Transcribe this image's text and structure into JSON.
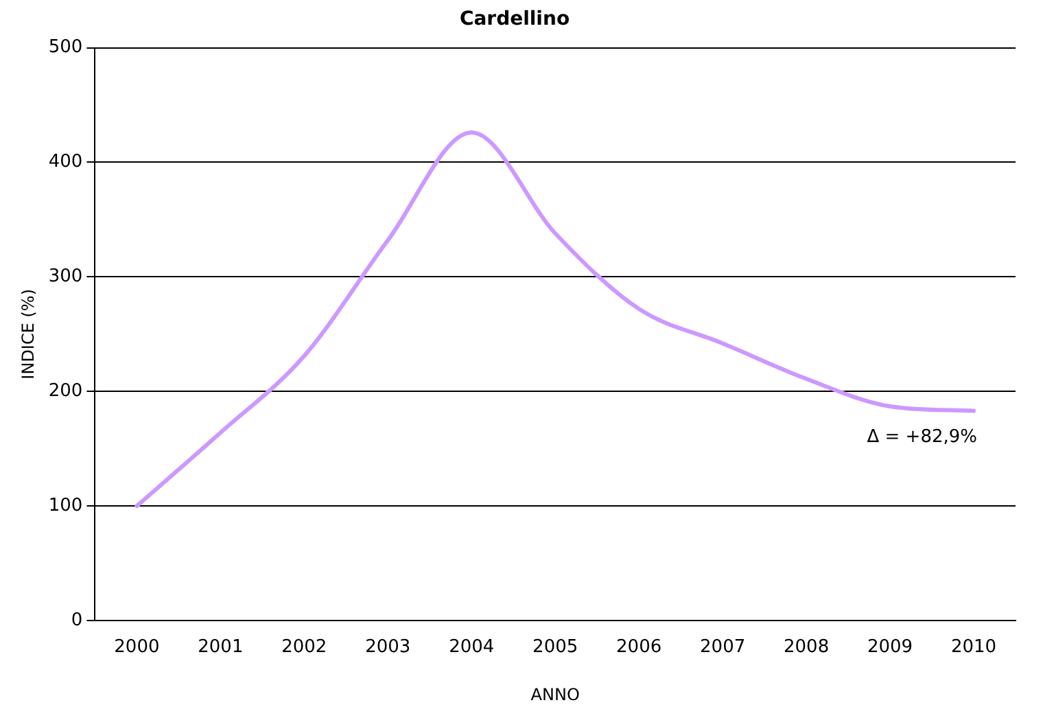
{
  "chart_data": {
    "type": "line",
    "title": "Cardellino",
    "xlabel": "ANNO",
    "ylabel": "INDICE (%)",
    "categories": [
      "2000",
      "2001",
      "2002",
      "2003",
      "2004",
      "2005",
      "2006",
      "2007",
      "2008",
      "2009",
      "2010"
    ],
    "series": [
      {
        "color": "#cc99ff",
        "values": [
          100,
          164,
          231,
          332,
          426,
          338,
          272,
          242,
          211,
          187,
          183
        ]
      }
    ],
    "ylim": [
      0,
      500
    ],
    "yticks": [
      0,
      100,
      200,
      300,
      400,
      500
    ],
    "grid": "y",
    "legend": false,
    "marker": "none",
    "line_style": "solid",
    "annotations": [
      "Δ = +82,9%"
    ]
  }
}
